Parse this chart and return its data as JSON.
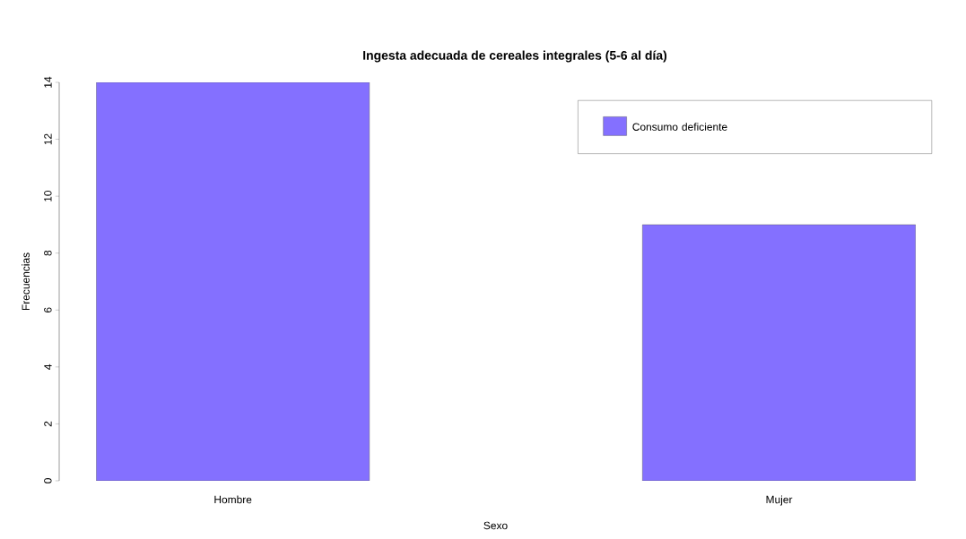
{
  "chart_data": {
    "type": "bar",
    "title": "Ingesta adecuada de cereales integrales (5-6 al día)",
    "xlabel": "Sexo",
    "ylabel": "Frecuencias",
    "categories": [
      "Hombre",
      "Mujer"
    ],
    "series": [
      {
        "name": "Consumo deficiente",
        "color": "#8470ff",
        "values": [
          14,
          9
        ]
      }
    ],
    "ylim": [
      0,
      14
    ],
    "yticks": [
      0,
      2,
      4,
      6,
      8,
      10,
      12,
      14
    ],
    "grid": false,
    "legend": "top right"
  }
}
